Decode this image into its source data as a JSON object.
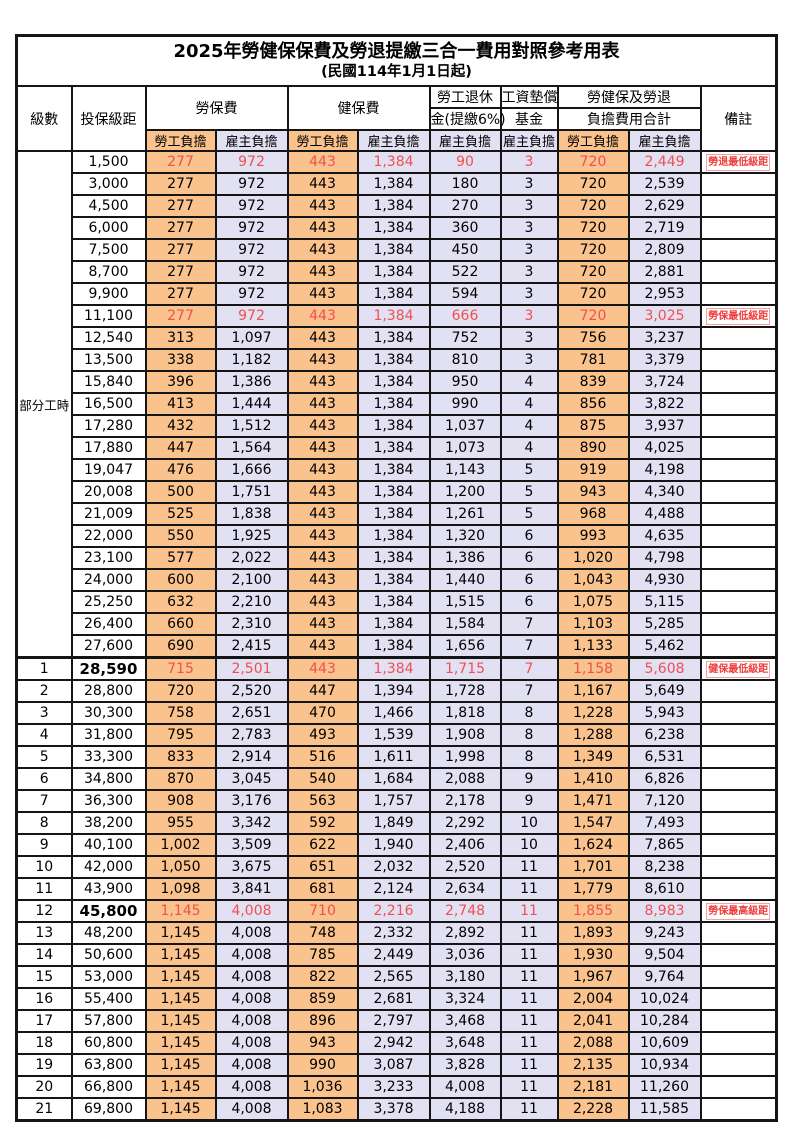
{
  "title": "2025年勞健保保費及勞退提繳三合一費用對照參考用表",
  "subtitle": "(民國114年1月1日起)",
  "header": {
    "level": "級數",
    "bracket": "投保級距",
    "labor_ins": "勞保費",
    "health_ins": "健保費",
    "pension_line1": "勞工退休",
    "pension_line2": "金(提繳6%)",
    "wage_fund_line1": "工資墊償",
    "wage_fund_line2": "基金",
    "total_line1": "勞健保及勞退",
    "total_line2": "負擔費用合計",
    "remark": "備註",
    "employee_label": "勞工負擔",
    "employer_label": "雇主負擔"
  },
  "part_time_label": "部分工時",
  "colors": {
    "employee_bg": "#FAC28C",
    "employer_bg": "#E2E0F3",
    "highlight_value": "#F05050",
    "remark_red": "#F03C3C",
    "border": "#151515"
  },
  "rows": [
    {
      "level": "",
      "bracket": "1,500",
      "values": [
        "277",
        "972",
        "443",
        "1,384",
        "90",
        "3",
        "720",
        "2,449"
      ],
      "remark": "勞退最低級距",
      "highlight": true,
      "bold_bracket": false
    },
    {
      "level": "",
      "bracket": "3,000",
      "values": [
        "277",
        "972",
        "443",
        "1,384",
        "180",
        "3",
        "720",
        "2,539"
      ],
      "remark": "",
      "highlight": false,
      "bold_bracket": false
    },
    {
      "level": "",
      "bracket": "4,500",
      "values": [
        "277",
        "972",
        "443",
        "1,384",
        "270",
        "3",
        "720",
        "2,629"
      ],
      "remark": "",
      "highlight": false,
      "bold_bracket": false
    },
    {
      "level": "",
      "bracket": "6,000",
      "values": [
        "277",
        "972",
        "443",
        "1,384",
        "360",
        "3",
        "720",
        "2,719"
      ],
      "remark": "",
      "highlight": false,
      "bold_bracket": false
    },
    {
      "level": "",
      "bracket": "7,500",
      "values": [
        "277",
        "972",
        "443",
        "1,384",
        "450",
        "3",
        "720",
        "2,809"
      ],
      "remark": "",
      "highlight": false,
      "bold_bracket": false
    },
    {
      "level": "",
      "bracket": "8,700",
      "values": [
        "277",
        "972",
        "443",
        "1,384",
        "522",
        "3",
        "720",
        "2,881"
      ],
      "remark": "",
      "highlight": false,
      "bold_bracket": false
    },
    {
      "level": "",
      "bracket": "9,900",
      "values": [
        "277",
        "972",
        "443",
        "1,384",
        "594",
        "3",
        "720",
        "2,953"
      ],
      "remark": "",
      "highlight": false,
      "bold_bracket": false
    },
    {
      "level": "",
      "bracket": "11,100",
      "values": [
        "277",
        "972",
        "443",
        "1,384",
        "666",
        "3",
        "720",
        "3,025"
      ],
      "remark": "勞保最低級距",
      "highlight": true,
      "bold_bracket": false
    },
    {
      "level": "",
      "bracket": "12,540",
      "values": [
        "313",
        "1,097",
        "443",
        "1,384",
        "752",
        "3",
        "756",
        "3,237"
      ],
      "remark": "",
      "highlight": false,
      "bold_bracket": false
    },
    {
      "level": "",
      "bracket": "13,500",
      "values": [
        "338",
        "1,182",
        "443",
        "1,384",
        "810",
        "3",
        "781",
        "3,379"
      ],
      "remark": "",
      "highlight": false,
      "bold_bracket": false
    },
    {
      "level": "",
      "bracket": "15,840",
      "values": [
        "396",
        "1,386",
        "443",
        "1,384",
        "950",
        "4",
        "839",
        "3,724"
      ],
      "remark": "",
      "highlight": false,
      "bold_bracket": false
    },
    {
      "level": "",
      "bracket": "16,500",
      "values": [
        "413",
        "1,444",
        "443",
        "1,384",
        "990",
        "4",
        "856",
        "3,822"
      ],
      "remark": "",
      "highlight": false,
      "bold_bracket": false
    },
    {
      "level": "",
      "bracket": "17,280",
      "values": [
        "432",
        "1,512",
        "443",
        "1,384",
        "1,037",
        "4",
        "875",
        "3,937"
      ],
      "remark": "",
      "highlight": false,
      "bold_bracket": false
    },
    {
      "level": "",
      "bracket": "17,880",
      "values": [
        "447",
        "1,564",
        "443",
        "1,384",
        "1,073",
        "4",
        "890",
        "4,025"
      ],
      "remark": "",
      "highlight": false,
      "bold_bracket": false
    },
    {
      "level": "",
      "bracket": "19,047",
      "values": [
        "476",
        "1,666",
        "443",
        "1,384",
        "1,143",
        "5",
        "919",
        "4,198"
      ],
      "remark": "",
      "highlight": false,
      "bold_bracket": false
    },
    {
      "level": "",
      "bracket": "20,008",
      "values": [
        "500",
        "1,751",
        "443",
        "1,384",
        "1,200",
        "5",
        "943",
        "4,340"
      ],
      "remark": "",
      "highlight": false,
      "bold_bracket": false
    },
    {
      "level": "",
      "bracket": "21,009",
      "values": [
        "525",
        "1,838",
        "443",
        "1,384",
        "1,261",
        "5",
        "968",
        "4,488"
      ],
      "remark": "",
      "highlight": false,
      "bold_bracket": false
    },
    {
      "level": "",
      "bracket": "22,000",
      "values": [
        "550",
        "1,925",
        "443",
        "1,384",
        "1,320",
        "6",
        "993",
        "4,635"
      ],
      "remark": "",
      "highlight": false,
      "bold_bracket": false
    },
    {
      "level": "",
      "bracket": "23,100",
      "values": [
        "577",
        "2,022",
        "443",
        "1,384",
        "1,386",
        "6",
        "1,020",
        "4,798"
      ],
      "remark": "",
      "highlight": false,
      "bold_bracket": false
    },
    {
      "level": "",
      "bracket": "24,000",
      "values": [
        "600",
        "2,100",
        "443",
        "1,384",
        "1,440",
        "6",
        "1,043",
        "4,930"
      ],
      "remark": "",
      "highlight": false,
      "bold_bracket": false
    },
    {
      "level": "",
      "bracket": "25,250",
      "values": [
        "632",
        "2,210",
        "443",
        "1,384",
        "1,515",
        "6",
        "1,075",
        "5,115"
      ],
      "remark": "",
      "highlight": false,
      "bold_bracket": false
    },
    {
      "level": "",
      "bracket": "26,400",
      "values": [
        "660",
        "2,310",
        "443",
        "1,384",
        "1,584",
        "7",
        "1,103",
        "5,285"
      ],
      "remark": "",
      "highlight": false,
      "bold_bracket": false
    },
    {
      "level": "",
      "bracket": "27,600",
      "values": [
        "690",
        "2,415",
        "443",
        "1,384",
        "1,656",
        "7",
        "1,133",
        "5,462"
      ],
      "remark": "",
      "highlight": false,
      "bold_bracket": false
    },
    {
      "level": "1",
      "bracket": "28,590",
      "values": [
        "715",
        "2,501",
        "443",
        "1,384",
        "1,715",
        "7",
        "1,158",
        "5,608"
      ],
      "remark": "健保最低級距",
      "highlight": true,
      "bold_bracket": true
    },
    {
      "level": "2",
      "bracket": "28,800",
      "values": [
        "720",
        "2,520",
        "447",
        "1,394",
        "1,728",
        "7",
        "1,167",
        "5,649"
      ],
      "remark": "",
      "highlight": false,
      "bold_bracket": false
    },
    {
      "level": "3",
      "bracket": "30,300",
      "values": [
        "758",
        "2,651",
        "470",
        "1,466",
        "1,818",
        "8",
        "1,228",
        "5,943"
      ],
      "remark": "",
      "highlight": false,
      "bold_bracket": false
    },
    {
      "level": "4",
      "bracket": "31,800",
      "values": [
        "795",
        "2,783",
        "493",
        "1,539",
        "1,908",
        "8",
        "1,288",
        "6,238"
      ],
      "remark": "",
      "highlight": false,
      "bold_bracket": false
    },
    {
      "level": "5",
      "bracket": "33,300",
      "values": [
        "833",
        "2,914",
        "516",
        "1,611",
        "1,998",
        "8",
        "1,349",
        "6,531"
      ],
      "remark": "",
      "highlight": false,
      "bold_bracket": false
    },
    {
      "level": "6",
      "bracket": "34,800",
      "values": [
        "870",
        "3,045",
        "540",
        "1,684",
        "2,088",
        "9",
        "1,410",
        "6,826"
      ],
      "remark": "",
      "highlight": false,
      "bold_bracket": false
    },
    {
      "level": "7",
      "bracket": "36,300",
      "values": [
        "908",
        "3,176",
        "563",
        "1,757",
        "2,178",
        "9",
        "1,471",
        "7,120"
      ],
      "remark": "",
      "highlight": false,
      "bold_bracket": false
    },
    {
      "level": "8",
      "bracket": "38,200",
      "values": [
        "955",
        "3,342",
        "592",
        "1,849",
        "2,292",
        "10",
        "1,547",
        "7,493"
      ],
      "remark": "",
      "highlight": false,
      "bold_bracket": false
    },
    {
      "level": "9",
      "bracket": "40,100",
      "values": [
        "1,002",
        "3,509",
        "622",
        "1,940",
        "2,406",
        "10",
        "1,624",
        "7,865"
      ],
      "remark": "",
      "highlight": false,
      "bold_bracket": false
    },
    {
      "level": "10",
      "bracket": "42,000",
      "values": [
        "1,050",
        "3,675",
        "651",
        "2,032",
        "2,520",
        "11",
        "1,701",
        "8,238"
      ],
      "remark": "",
      "highlight": false,
      "bold_bracket": false
    },
    {
      "level": "11",
      "bracket": "43,900",
      "values": [
        "1,098",
        "3,841",
        "681",
        "2,124",
        "2,634",
        "11",
        "1,779",
        "8,610"
      ],
      "remark": "",
      "highlight": false,
      "bold_bracket": false
    },
    {
      "level": "12",
      "bracket": "45,800",
      "values": [
        "1,145",
        "4,008",
        "710",
        "2,216",
        "2,748",
        "11",
        "1,855",
        "8,983"
      ],
      "remark": "勞保最高級距",
      "highlight": true,
      "bold_bracket": true
    },
    {
      "level": "13",
      "bracket": "48,200",
      "values": [
        "1,145",
        "4,008",
        "748",
        "2,332",
        "2,892",
        "11",
        "1,893",
        "9,243"
      ],
      "remark": "",
      "highlight": false,
      "bold_bracket": false
    },
    {
      "level": "14",
      "bracket": "50,600",
      "values": [
        "1,145",
        "4,008",
        "785",
        "2,449",
        "3,036",
        "11",
        "1,930",
        "9,504"
      ],
      "remark": "",
      "highlight": false,
      "bold_bracket": false
    },
    {
      "level": "15",
      "bracket": "53,000",
      "values": [
        "1,145",
        "4,008",
        "822",
        "2,565",
        "3,180",
        "11",
        "1,967",
        "9,764"
      ],
      "remark": "",
      "highlight": false,
      "bold_bracket": false
    },
    {
      "level": "16",
      "bracket": "55,400",
      "values": [
        "1,145",
        "4,008",
        "859",
        "2,681",
        "3,324",
        "11",
        "2,004",
        "10,024"
      ],
      "remark": "",
      "highlight": false,
      "bold_bracket": false
    },
    {
      "level": "17",
      "bracket": "57,800",
      "values": [
        "1,145",
        "4,008",
        "896",
        "2,797",
        "3,468",
        "11",
        "2,041",
        "10,284"
      ],
      "remark": "",
      "highlight": false,
      "bold_bracket": false
    },
    {
      "level": "18",
      "bracket": "60,800",
      "values": [
        "1,145",
        "4,008",
        "943",
        "2,942",
        "3,648",
        "11",
        "2,088",
        "10,609"
      ],
      "remark": "",
      "highlight": false,
      "bold_bracket": false
    },
    {
      "level": "19",
      "bracket": "63,800",
      "values": [
        "1,145",
        "4,008",
        "990",
        "3,087",
        "3,828",
        "11",
        "2,135",
        "10,934"
      ],
      "remark": "",
      "highlight": false,
      "bold_bracket": false
    },
    {
      "level": "20",
      "bracket": "66,800",
      "values": [
        "1,145",
        "4,008",
        "1,036",
        "3,233",
        "4,008",
        "11",
        "2,181",
        "11,260"
      ],
      "remark": "",
      "highlight": false,
      "bold_bracket": false
    },
    {
      "level": "21",
      "bracket": "69,800",
      "values": [
        "1,145",
        "4,008",
        "1,083",
        "3,378",
        "4,188",
        "11",
        "2,228",
        "11,585"
      ],
      "remark": "",
      "highlight": false,
      "bold_bracket": false
    }
  ]
}
